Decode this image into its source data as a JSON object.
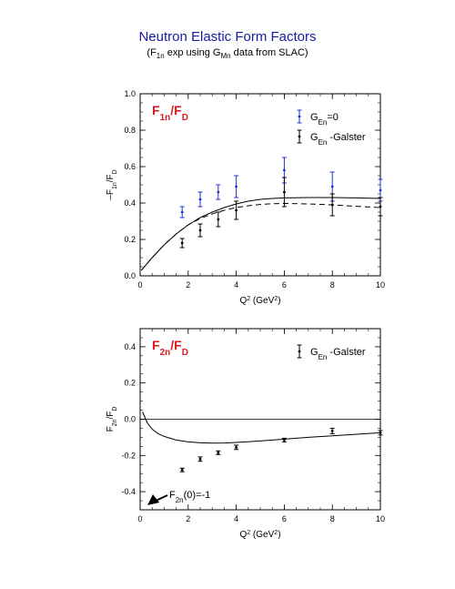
{
  "title": "Neutron Elastic Form Factors",
  "subtitle": {
    "prefix": "(F",
    "f_sub": "1n",
    "mid": " exp using G",
    "g_sub": "Mn",
    "suffix": " data from SLAC)"
  },
  "colors": {
    "title": "#1a1aa6",
    "blue_series": "#1f2fd6",
    "black_series": "#000000",
    "plot_label": "#dd1a1a"
  },
  "chart_data": [
    {
      "type": "scatter",
      "panel_label": {
        "main": "F",
        "sub": "1n",
        "tail": "/F",
        "tail_sub": "D"
      },
      "ylabel": {
        "main": "F",
        "sub": "1n",
        "tail": "/F",
        "tail_sub": "D"
      },
      "xlabel": {
        "main": "Q",
        "sup": "2",
        "tail": " (GeV",
        "tail_sup": "2",
        "close": ")"
      },
      "xlim": [
        0,
        10
      ],
      "ylim": [
        0,
        1.0
      ],
      "xticks": [
        0,
        2,
        4,
        6,
        8,
        10
      ],
      "yticks": [
        0.0,
        0.2,
        0.4,
        0.6,
        0.8,
        1.0
      ],
      "ytick_labels": [
        "0.0",
        "0.2",
        "0.4",
        "0.6",
        "0.8",
        "1.0"
      ],
      "legend": [
        {
          "main": "G",
          "sub": "En",
          "tail": "=0",
          "color": "#1f2fd6"
        },
        {
          "main": "G",
          "sub": "En",
          "tail": " -Galster",
          "color": "#000000"
        }
      ],
      "series": [
        {
          "name": "GEn=0",
          "color": "#1f2fd6",
          "points": [
            {
              "x": 1.75,
              "y": 0.35,
              "err": 0.03
            },
            {
              "x": 2.5,
              "y": 0.42,
              "err": 0.04
            },
            {
              "x": 3.25,
              "y": 0.46,
              "err": 0.04
            },
            {
              "x": 4.0,
              "y": 0.49,
              "err": 0.06
            },
            {
              "x": 6.0,
              "y": 0.58,
              "err": 0.07
            },
            {
              "x": 8.0,
              "y": 0.49,
              "err": 0.08
            },
            {
              "x": 10.0,
              "y": 0.47,
              "err": 0.06
            }
          ]
        },
        {
          "name": "GEn -Galster",
          "color": "#000000",
          "points": [
            {
              "x": 1.75,
              "y": 0.18,
              "err": 0.025
            },
            {
              "x": 2.5,
              "y": 0.25,
              "err": 0.035
            },
            {
              "x": 3.25,
              "y": 0.31,
              "err": 0.04
            },
            {
              "x": 4.0,
              "y": 0.36,
              "err": 0.05
            },
            {
              "x": 6.0,
              "y": 0.46,
              "err": 0.08
            },
            {
              "x": 8.0,
              "y": 0.39,
              "err": 0.06
            },
            {
              "x": 10.0,
              "y": 0.38,
              "err": 0.05
            }
          ]
        }
      ],
      "curves": [
        {
          "style": "solid",
          "x": [
            0.05,
            0.5,
            1,
            1.5,
            2,
            2.5,
            3,
            3.5,
            4,
            4.5,
            5,
            5.5,
            6,
            7,
            8,
            9,
            10
          ],
          "y": [
            0.03,
            0.1,
            0.17,
            0.23,
            0.28,
            0.32,
            0.35,
            0.375,
            0.395,
            0.41,
            0.42,
            0.425,
            0.428,
            0.43,
            0.43,
            0.428,
            0.425
          ]
        },
        {
          "style": "dashed",
          "x": [
            0.05,
            0.5,
            1,
            1.5,
            2,
            2.5,
            3,
            3.5,
            4,
            4.5,
            5,
            5.5,
            6,
            7,
            8,
            9,
            10
          ],
          "y": [
            0.03,
            0.1,
            0.17,
            0.23,
            0.28,
            0.315,
            0.34,
            0.36,
            0.375,
            0.385,
            0.392,
            0.396,
            0.398,
            0.395,
            0.39,
            0.382,
            0.375
          ]
        }
      ]
    },
    {
      "type": "scatter",
      "panel_label": {
        "main": "F",
        "sub": "2n",
        "tail": "/F",
        "tail_sub": "D"
      },
      "ylabel": {
        "main": "F",
        "sub": "2n",
        "tail": "/F",
        "tail_sub": "D"
      },
      "xlabel": {
        "main": "Q",
        "sup": "2",
        "tail": " (GeV",
        "tail_sup": "2",
        "close": ")"
      },
      "xlim": [
        0,
        10
      ],
      "ylim": [
        -0.5,
        0.5
      ],
      "xticks": [
        0,
        2,
        4,
        6,
        8,
        10
      ],
      "yticks": [
        -0.4,
        -0.2,
        0.0,
        0.2,
        0.4
      ],
      "ytick_labels": [
        "-0.4",
        "-0.2",
        "0.0",
        "0.2",
        "0.4"
      ],
      "legend": [
        {
          "main": "G",
          "sub": "En",
          "tail": " -Galster",
          "color": "#000000"
        }
      ],
      "annotation": {
        "main": "F",
        "sub": "2n",
        "tail": "(0)=-1"
      },
      "zero_line": 0.0,
      "series": [
        {
          "name": "GEn -Galster",
          "color": "#000000",
          "points": [
            {
              "x": 1.75,
              "y": -0.28,
              "err": 0.01
            },
            {
              "x": 2.5,
              "y": -0.22,
              "err": 0.012
            },
            {
              "x": 3.25,
              "y": -0.185,
              "err": 0.01
            },
            {
              "x": 4.0,
              "y": -0.155,
              "err": 0.012
            },
            {
              "x": 6.0,
              "y": -0.115,
              "err": 0.01
            },
            {
              "x": 8.0,
              "y": -0.065,
              "err": 0.015
            },
            {
              "x": 10.0,
              "y": -0.075,
              "err": 0.012
            }
          ]
        }
      ],
      "curves": [
        {
          "style": "solid",
          "x": [
            0.1,
            0.3,
            0.5,
            0.75,
            1,
            1.5,
            2,
            2.5,
            3,
            3.5,
            4,
            5,
            6,
            7,
            8,
            9,
            10
          ],
          "y": [
            0.04,
            -0.02,
            -0.055,
            -0.08,
            -0.095,
            -0.115,
            -0.125,
            -0.13,
            -0.132,
            -0.131,
            -0.128,
            -0.12,
            -0.11,
            -0.1,
            -0.092,
            -0.083,
            -0.075
          ]
        }
      ]
    }
  ]
}
